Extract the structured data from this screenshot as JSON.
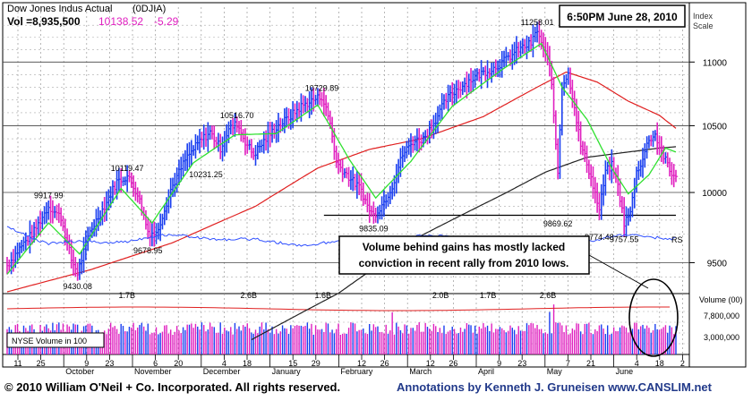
{
  "header": {
    "title": "Dow Jones Indus Actual",
    "symbol": "(0DJIA)",
    "volume": "Vol =8,935,500",
    "price": "10138.52",
    "change": "-5.29",
    "timestamp": "6:50PM June 28, 2010"
  },
  "scale_label": [
    "Index",
    "Scale"
  ],
  "volume_scale_label": "Volume (00)",
  "nyse_label": "NYSE Volume in 100",
  "rs_label": "RS",
  "callout": {
    "line1": "Volume behind gains has mostly lacked",
    "line2": "conviction in recent rally from 2010 lows."
  },
  "footer": {
    "copyright": "© 2010 William O'Neil + Co. Incorporated. All rights reserved.",
    "annotations": "Annotations by Kenneth J. Gruneisen www.CANSLIM.net"
  },
  "colors": {
    "up": "#1a3ff0",
    "down": "#e020c0",
    "ma50": "#e02020",
    "ma10": "#30e030",
    "ma200": "#222222",
    "rs": "#3050ff",
    "support": "#000000",
    "timestamp_text": "#000000",
    "change_text": "#e020c0"
  },
  "chart_data": {
    "type": "line",
    "title": "Dow Jones Indus Actual (0DJIA)",
    "y_axis": {
      "scale": "log",
      "range": [
        9300,
        11450
      ],
      "ticks": [
        9500,
        10000,
        10500,
        11000
      ]
    },
    "volume_axis": {
      "ticks_labels": [
        "7,800,000",
        "3,000,000"
      ]
    },
    "x_tick_labels": [
      "11",
      "25",
      "October",
      "9",
      "23",
      "November",
      "6",
      "20",
      "December",
      "4",
      "18",
      "January",
      "15",
      "29",
      "February",
      "12",
      "26",
      "March",
      "12",
      "26",
      "April",
      "9",
      "23",
      "May",
      "7",
      "21",
      "June",
      "4",
      "18",
      "2"
    ],
    "price_annotations": [
      {
        "label": "9430.08",
        "value": 9430.08
      },
      {
        "label": "9917.99",
        "value": 9917.99
      },
      {
        "label": "10119.47",
        "value": 10119.47
      },
      {
        "label": "9678.95",
        "value": 9678.95
      },
      {
        "label": "10516.70",
        "value": 10516.7
      },
      {
        "label": "10231.25",
        "value": 10231.25
      },
      {
        "label": "10729.89",
        "value": 10729.89
      },
      {
        "label": "9835.09",
        "value": 9835.09
      },
      {
        "label": "11258.01",
        "value": 11258.01
      },
      {
        "label": "9869.62",
        "value": 9869.62
      },
      {
        "label": "9774.48",
        "value": 9774.48
      },
      {
        "label": "9757.55",
        "value": 9757.55
      }
    ],
    "volume_annotations": [
      "1.7B",
      "2.6B",
      "1.6B",
      "2.0B",
      "1.7B",
      "2.6B"
    ],
    "support_level": 9835,
    "series_close_points": [
      [
        0,
        9480
      ],
      [
        6,
        9600
      ],
      [
        13,
        9720
      ],
      [
        20,
        9900
      ],
      [
        26,
        9820
      ],
      [
        31,
        9520
      ],
      [
        34,
        9430
      ],
      [
        40,
        9720
      ],
      [
        47,
        9900
      ],
      [
        53,
        10080
      ],
      [
        58,
        10119
      ],
      [
        63,
        9990
      ],
      [
        68,
        9720
      ],
      [
        72,
        9700
      ],
      [
        79,
        10020
      ],
      [
        86,
        10240
      ],
      [
        93,
        10380
      ],
      [
        98,
        10450
      ],
      [
        103,
        10330
      ],
      [
        107,
        10470
      ],
      [
        111,
        10516
      ],
      [
        115,
        10380
      ],
      [
        119,
        10280
      ],
      [
        124,
        10380
      ],
      [
        130,
        10490
      ],
      [
        136,
        10560
      ],
      [
        142,
        10650
      ],
      [
        148,
        10700
      ],
      [
        152,
        10729
      ],
      [
        156,
        10520
      ],
      [
        159,
        10220
      ],
      [
        163,
        10150
      ],
      [
        167,
        10080
      ],
      [
        171,
        10020
      ],
      [
        174,
        9900
      ],
      [
        177,
        9835
      ],
      [
        182,
        9930
      ],
      [
        186,
        10050
      ],
      [
        191,
        10280
      ],
      [
        196,
        10380
      ],
      [
        201,
        10400
      ],
      [
        206,
        10520
      ],
      [
        212,
        10700
      ],
      [
        217,
        10780
      ],
      [
        223,
        10850
      ],
      [
        229,
        10910
      ],
      [
        235,
        10950
      ],
      [
        241,
        11020
      ],
      [
        247,
        11100
      ],
      [
        253,
        11150
      ],
      [
        256,
        11258
      ],
      [
        259,
        11100
      ],
      [
        262,
        11000
      ],
      [
        264,
        10580
      ],
      [
        266,
        10150
      ],
      [
        268,
        10820
      ],
      [
        271,
        10900
      ],
      [
        274,
        10650
      ],
      [
        277,
        10350
      ],
      [
        280,
        10220
      ],
      [
        283,
        10050
      ],
      [
        286,
        9870
      ],
      [
        289,
        10150
      ],
      [
        292,
        10200
      ],
      [
        295,
        10050
      ],
      [
        298,
        9780
      ],
      [
        301,
        9850
      ],
      [
        304,
        10150
      ],
      [
        307,
        10250
      ],
      [
        310,
        10400
      ],
      [
        313,
        10430
      ],
      [
        316,
        10300
      ],
      [
        319,
        10200
      ],
      [
        321,
        10120
      ],
      [
        323,
        10138
      ]
    ],
    "ma50_points": [
      [
        0,
        9300
      ],
      [
        40,
        9450
      ],
      [
        80,
        9640
      ],
      [
        120,
        9900
      ],
      [
        150,
        10180
      ],
      [
        175,
        10320
      ],
      [
        200,
        10400
      ],
      [
        230,
        10570
      ],
      [
        256,
        10800
      ],
      [
        270,
        10920
      ],
      [
        285,
        10840
      ],
      [
        300,
        10690
      ],
      [
        315,
        10580
      ],
      [
        323,
        10480
      ]
    ],
    "ma200_points": [
      [
        118,
        8980
      ],
      [
        160,
        9290
      ],
      [
        200,
        9690
      ],
      [
        240,
        9990
      ],
      [
        260,
        10150
      ],
      [
        280,
        10260
      ],
      [
        300,
        10300
      ],
      [
        315,
        10330
      ],
      [
        323,
        10340
      ]
    ],
    "ma10_points": [
      [
        0,
        9420
      ],
      [
        20,
        9780
      ],
      [
        35,
        9560
      ],
      [
        55,
        10030
      ],
      [
        70,
        9780
      ],
      [
        90,
        10220
      ],
      [
        110,
        10430
      ],
      [
        130,
        10440
      ],
      [
        150,
        10660
      ],
      [
        165,
        10250
      ],
      [
        178,
        9960
      ],
      [
        195,
        10230
      ],
      [
        215,
        10650
      ],
      [
        240,
        10950
      ],
      [
        258,
        11150
      ],
      [
        268,
        10800
      ],
      [
        280,
        10550
      ],
      [
        292,
        10180
      ],
      [
        300,
        9990
      ],
      [
        310,
        10130
      ],
      [
        318,
        10330
      ],
      [
        323,
        10300
      ]
    ]
  }
}
